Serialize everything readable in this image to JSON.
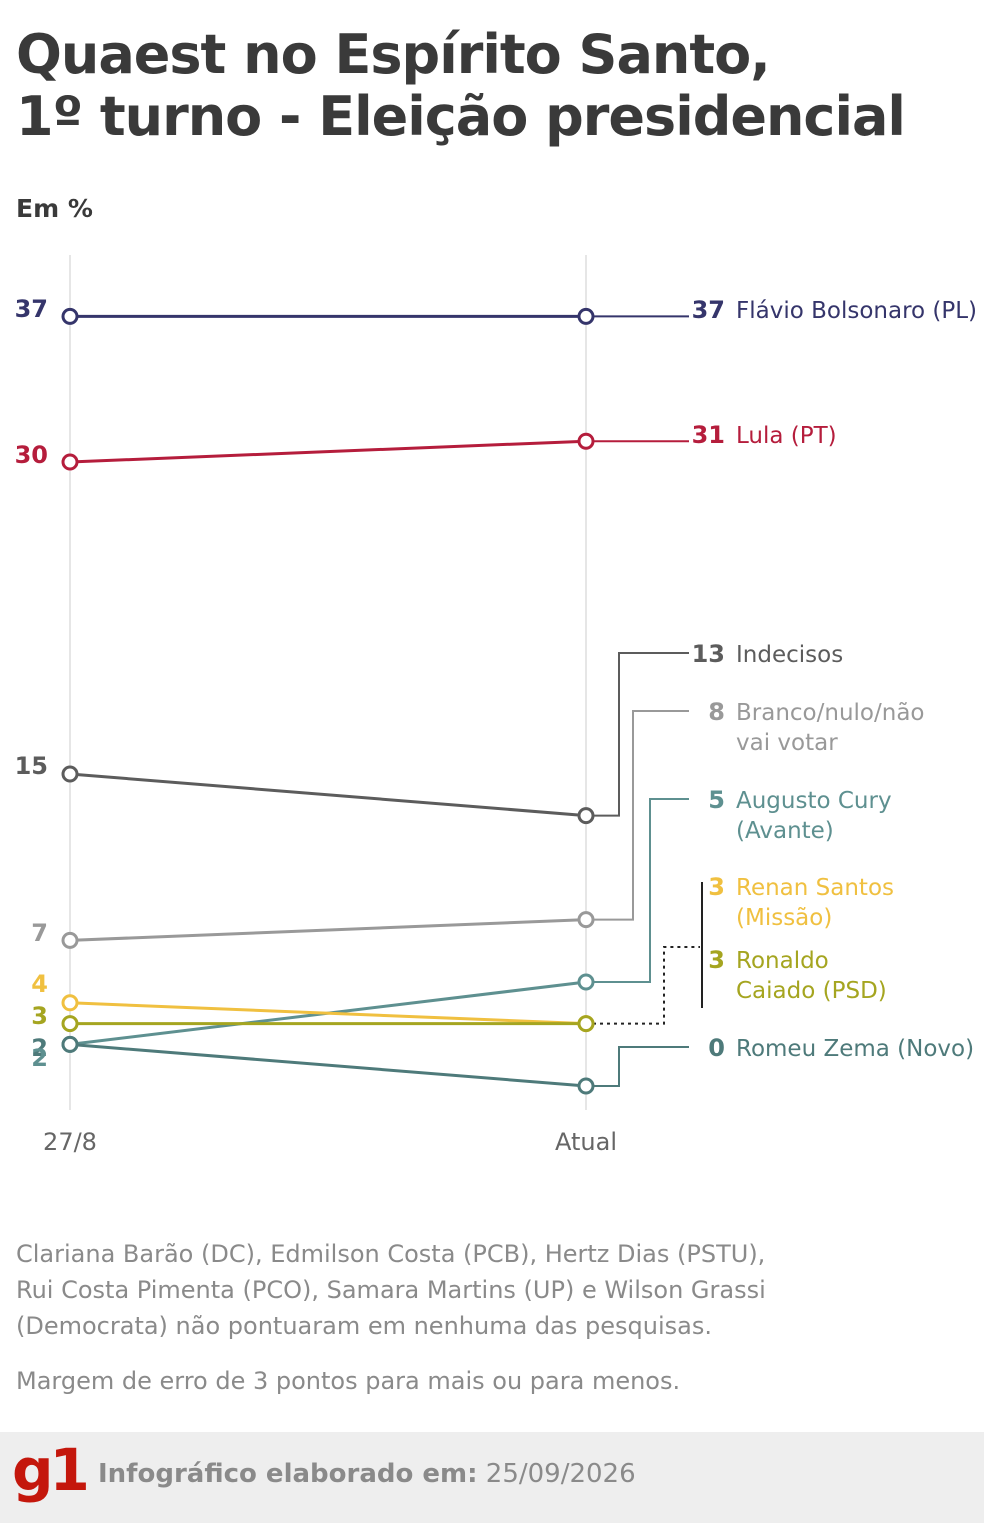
{
  "title_lines": [
    "Quaest no Espírito Santo,",
    "1º turno - Eleição presidencial"
  ],
  "unit": "Em %",
  "chart_data": {
    "type": "line",
    "x": [
      "27/8",
      "Atual"
    ],
    "ylim": [
      0,
      40
    ],
    "series": [
      {
        "name": "Flávio Bolsonaro (PL)",
        "values": [
          37,
          37
        ],
        "color": "#35356b",
        "start_label": "37",
        "end_label": "37",
        "label_lines": [
          "Flávio Bolsonaro (PL)"
        ]
      },
      {
        "name": "Lula (PT)",
        "values": [
          30,
          31
        ],
        "color": "#b51d3c",
        "start_label": "30",
        "end_label": "31",
        "label_lines": [
          "Lula (PT)"
        ]
      },
      {
        "name": "Indecisos",
        "values": [
          15,
          13
        ],
        "color": "#5c5c5c",
        "start_label": "15",
        "end_label": "13",
        "label_lines": [
          "Indecisos"
        ]
      },
      {
        "name": "Branco/nulo/não vai votar",
        "values": [
          7,
          8
        ],
        "color": "#999999",
        "start_label": "7",
        "end_label": "8",
        "label_lines": [
          "Branco/nulo/não",
          "vai votar"
        ]
      },
      {
        "name": "Augusto Cury (Avante)",
        "values": [
          2,
          5
        ],
        "color": "#5e9090",
        "start_label": "",
        "end_label": "5",
        "label_lines": [
          "Augusto Cury",
          "(Avante)"
        ]
      },
      {
        "name": "Renan Santos (Missão)",
        "values": [
          4,
          3
        ],
        "color": "#f0c040",
        "start_label": "4",
        "end_label": "3",
        "label_lines": [
          "Renan Santos",
          "(Missão)"
        ]
      },
      {
        "name": "Ronaldo Caiado (PSD)",
        "values": [
          3,
          3
        ],
        "color": "#a5a520",
        "start_label": "3",
        "end_label": "3",
        "label_lines": [
          "Ronaldo",
          "Caiado (PSD)"
        ]
      },
      {
        "name": "Romeu Zema (Novo)",
        "values": [
          2,
          0
        ],
        "color": "#4e7a7a",
        "start_label": "2",
        "end_label": "0",
        "label_lines": [
          "Romeu Zema (Novo)"
        ]
      }
    ]
  },
  "note_lines": [
    "Clariana Barão (DC), Edmilson Costa (PCB), Hertz Dias (PSTU),",
    "Rui Costa Pimenta (PCO), Samara Martins (UP) e Wilson Grassi",
    "(Democrata) não pontuaram em nenhuma das pesquisas."
  ],
  "margin_note": "Margem de erro de 3 pontos para mais ou para menos.",
  "footer": {
    "logo": "g1",
    "credit_label": "Infográfico elaborado em:",
    "credit_date": "25/09/2026"
  }
}
